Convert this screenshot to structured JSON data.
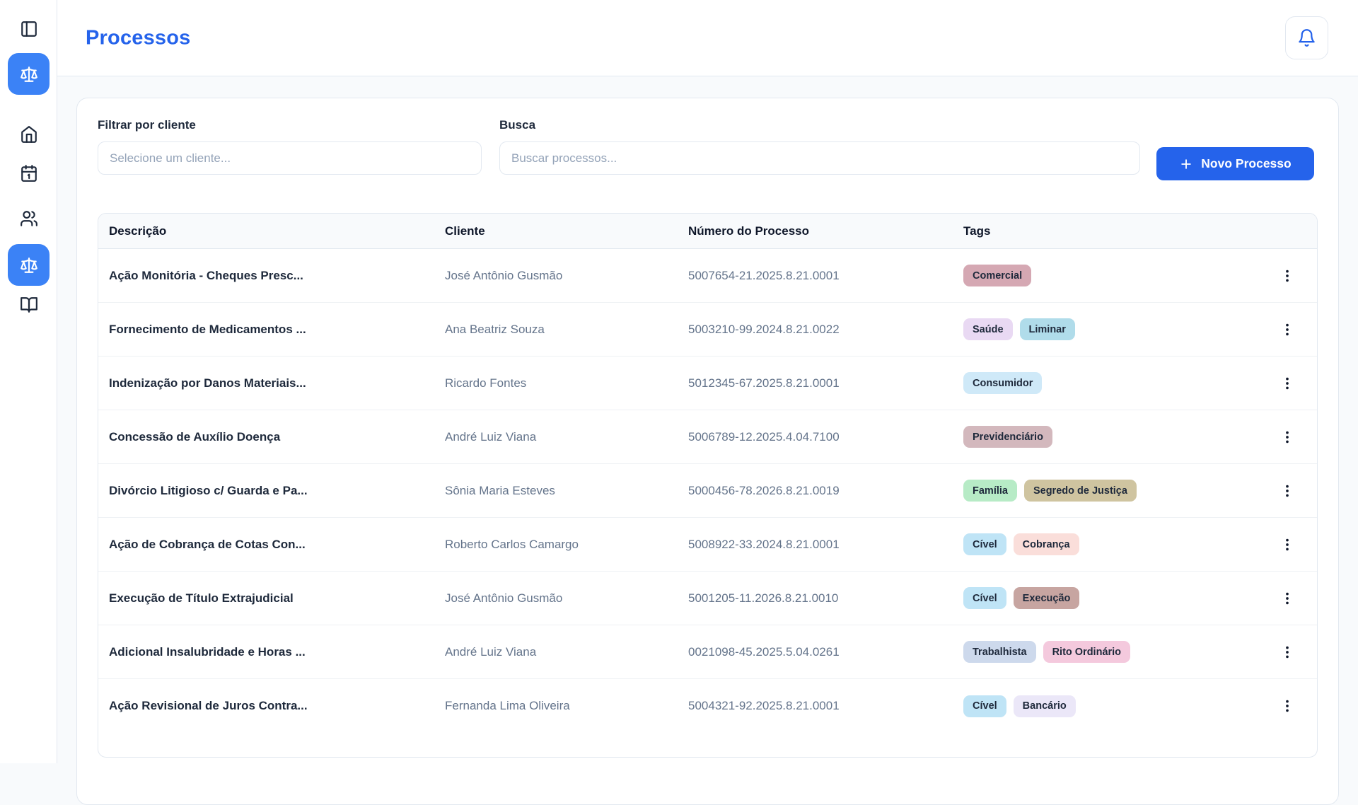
{
  "colors": {
    "accent": "#2563eb",
    "sidebar_active_bg": "#3b82f6",
    "page_bg": "#f8fafc",
    "border": "#e2e8f0",
    "text_primary": "#0f172a",
    "text_secondary": "#64748b",
    "placeholder": "#94a3b8"
  },
  "sidebar": {
    "items": [
      {
        "id": "toggle-sidebar",
        "icon": "panel-left-icon",
        "active": false
      },
      {
        "id": "processes-shortcut",
        "icon": "scales-icon",
        "active": true
      },
      {
        "id": "home",
        "icon": "home-icon",
        "active": false
      },
      {
        "id": "calendar",
        "icon": "calendar-icon",
        "active": false
      },
      {
        "id": "clients",
        "icon": "users-icon",
        "active": false
      },
      {
        "id": "processes",
        "icon": "scales-icon",
        "active": true
      },
      {
        "id": "library",
        "icon": "book-open-icon",
        "active": false
      }
    ]
  },
  "header": {
    "title": "Processos",
    "bell_icon": "bell-icon"
  },
  "filters": {
    "client_label": "Filtrar por cliente",
    "client_placeholder": "Selecione um cliente...",
    "search_label": "Busca",
    "search_placeholder": "Buscar processos...",
    "new_button_label": "Novo Processo",
    "new_button_icon": "plus-icon"
  },
  "table": {
    "columns": [
      "Descrição",
      "Cliente",
      "Número do Processo",
      "Tags"
    ],
    "rows": [
      {
        "descricao": "Ação Monitória - Cheques Presc...",
        "cliente": "José Antônio Gusmão",
        "numero": "5007654-21.2025.8.21.0001",
        "tags": [
          {
            "label": "Comercial",
            "bg": "#d5a8b3"
          }
        ]
      },
      {
        "descricao": "Fornecimento de Medicamentos ...",
        "cliente": "Ana Beatriz Souza",
        "numero": "5003210-99.2024.8.21.0022",
        "tags": [
          {
            "label": "Saúde",
            "bg": "#e9d9f3"
          },
          {
            "label": "Liminar",
            "bg": "#b0dcea"
          }
        ]
      },
      {
        "descricao": "Indenização por Danos Materiais...",
        "cliente": "Ricardo Fontes",
        "numero": "5012345-67.2025.8.21.0001",
        "tags": [
          {
            "label": "Consumidor",
            "bg": "#cfe9f8"
          }
        ]
      },
      {
        "descricao": "Concessão de Auxílio Doença",
        "cliente": "André Luiz Viana",
        "numero": "5006789-12.2025.4.04.7100",
        "tags": [
          {
            "label": "Previdenciário",
            "bg": "#d3b8bd"
          }
        ]
      },
      {
        "descricao": "Divórcio Litigioso c/ Guarda e Pa...",
        "cliente": "Sônia Maria Esteves",
        "numero": "5000456-78.2026.8.21.0019",
        "tags": [
          {
            "label": "Família",
            "bg": "#b7ebc6"
          },
          {
            "label": "Segredo de Justiça",
            "bg": "#cfc4a0"
          }
        ]
      },
      {
        "descricao": "Ação de Cobrança de Cotas Con...",
        "cliente": "Roberto Carlos Camargo",
        "numero": "5008922-33.2024.8.21.0001",
        "tags": [
          {
            "label": "Cível",
            "bg": "#bfe4f6"
          },
          {
            "label": "Cobrança",
            "bg": "#fadeda"
          }
        ]
      },
      {
        "descricao": "Execução de Título Extrajudicial",
        "cliente": "José Antônio Gusmão",
        "numero": "5001205-11.2026.8.21.0010",
        "tags": [
          {
            "label": "Cível",
            "bg": "#bfe4f6"
          },
          {
            "label": "Execução",
            "bg": "#c7a5a1"
          }
        ]
      },
      {
        "descricao": "Adicional Insalubridade e Horas ...",
        "cliente": "André Luiz Viana",
        "numero": "0021098-45.2025.5.04.0261",
        "tags": [
          {
            "label": "Trabalhista",
            "bg": "#cdd9ec"
          },
          {
            "label": "Rito Ordinário",
            "bg": "#f4c9dd"
          }
        ]
      },
      {
        "descricao": "Ação Revisional de Juros Contra...",
        "cliente": "Fernanda Lima Oliveira",
        "numero": "5004321-92.2025.8.21.0001",
        "tags": [
          {
            "label": "Cível",
            "bg": "#bfe4f6"
          },
          {
            "label": "Bancário",
            "bg": "#ebe7f8"
          }
        ]
      }
    ]
  }
}
